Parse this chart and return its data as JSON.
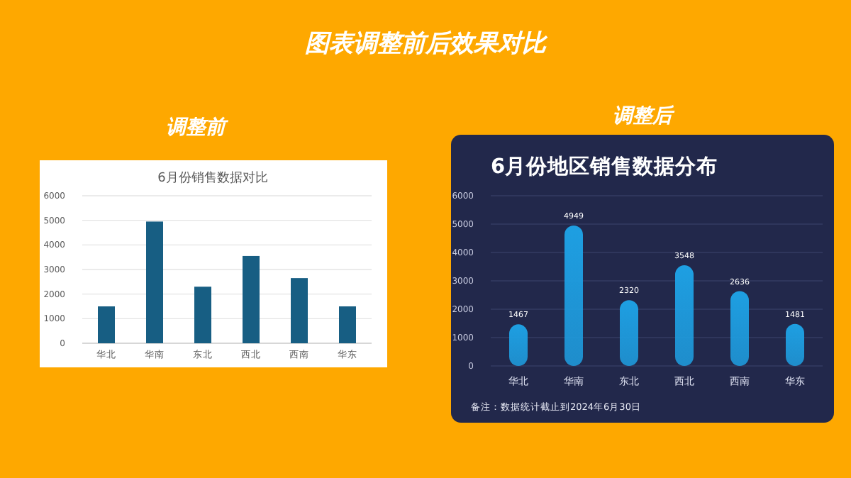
{
  "chart_data": [
    {
      "type": "other",
      "title": "图表调整前后效果对比"
    },
    {
      "type": "bar",
      "title": "6月份销售数据对比",
      "annotations": [
        "调整前"
      ],
      "categories": [
        "华北",
        "华南",
        "东北",
        "西北",
        "西南",
        "华东"
      ],
      "values": [
        1500,
        4950,
        2300,
        3550,
        2650,
        1500
      ],
      "color": "#175e83",
      "ylim": [
        0,
        6000
      ],
      "yticks": [
        0,
        1000,
        2000,
        3000,
        4000,
        5000,
        6000
      ],
      "grid": "y"
    },
    {
      "type": "bar",
      "title": "6月份地区销售数据分布",
      "annotations": [
        "调整后",
        "备注：数据统计截止到2024年6月30日"
      ],
      "categories": [
        "华北",
        "华南",
        "东北",
        "西北",
        "西南",
        "华东"
      ],
      "values": [
        1467,
        4949,
        2320,
        3548,
        2636,
        1481
      ],
      "color": "#1e9fe2",
      "ylim": [
        0,
        6000
      ],
      "yticks": [
        0,
        1000,
        2000,
        3000,
        4000,
        5000,
        6000
      ],
      "grid": "y",
      "data_labels": true
    }
  ]
}
